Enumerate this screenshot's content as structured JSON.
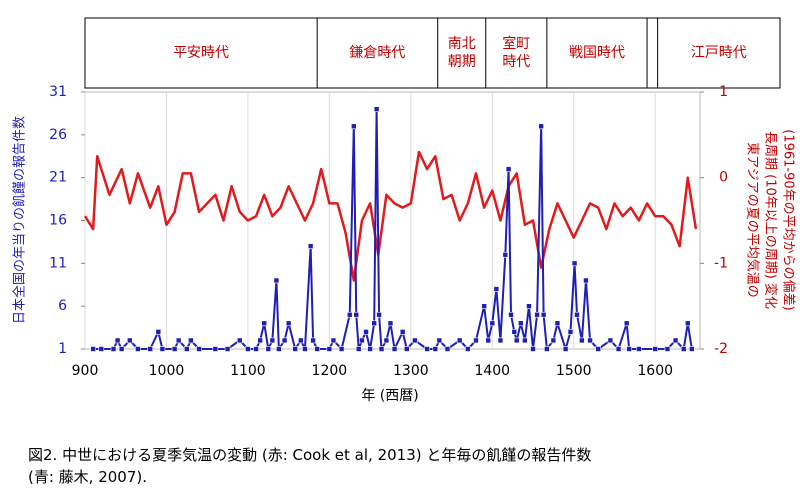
{
  "chart_data": {
    "type": "line",
    "eras": [
      [
        "平安時代"
      ],
      [
        "鎌倉時代"
      ],
      [
        "南北",
        "朝期"
      ],
      [
        "室町",
        "時代"
      ],
      [
        "戦国時代"
      ],
      null,
      [
        "江戸時代"
      ]
    ],
    "era_boundaries": [
      1185,
      1333,
      1392,
      1467,
      1590,
      1603
    ],
    "xlabel": "年 (西暦)",
    "ylabel": "日本全国の年当りの飢饉の報告件数",
    "y2label": [
      "東アジアの夏の平均気温の",
      "長周期 (10年以上の周期) 変化",
      "(1961-90年の平均からの偏差)"
    ],
    "caption": [
      "図2. 中世における夏季気温の変動 (赤: Cook et al, 2013) と年毎の飢饉の報告件数",
      "(青: 藤木, 2007)."
    ],
    "xlim": [
      900,
      1655
    ],
    "xticks": [
      900,
      1000,
      1100,
      1200,
      1300,
      1400,
      1500,
      1600
    ],
    "ylim": [
      1,
      31
    ],
    "yticks": [
      1,
      6,
      11,
      16,
      21,
      26,
      31
    ],
    "y2lim": [
      -2,
      1
    ],
    "y2ticks": [
      -2,
      -1,
      0,
      1
    ],
    "xgrid": true,
    "series": [
      {
        "color": "#e31a1c",
        "axis": "y2",
        "x": [
          900,
          910,
          915,
          930,
          945,
          955,
          965,
          980,
          990,
          1000,
          1010,
          1020,
          1030,
          1040,
          1050,
          1060,
          1070,
          1080,
          1090,
          1100,
          1110,
          1120,
          1130,
          1140,
          1150,
          1160,
          1170,
          1180,
          1190,
          1200,
          1210,
          1220,
          1230,
          1240,
          1250,
          1260,
          1270,
          1280,
          1290,
          1300,
          1310,
          1320,
          1330,
          1340,
          1350,
          1360,
          1370,
          1380,
          1390,
          1400,
          1410,
          1420,
          1430,
          1440,
          1450,
          1460,
          1470,
          1480,
          1490,
          1500,
          1510,
          1520,
          1530,
          1540,
          1550,
          1560,
          1570,
          1580,
          1590,
          1600,
          1610,
          1620,
          1630,
          1640,
          1650
        ],
        "values": [
          -0.45,
          -0.6,
          0.25,
          -0.2,
          0.1,
          -0.3,
          0.05,
          -0.35,
          -0.1,
          -0.55,
          -0.4,
          0.05,
          0.05,
          -0.4,
          -0.3,
          -0.2,
          -0.5,
          -0.1,
          -0.4,
          -0.5,
          -0.45,
          -0.2,
          -0.45,
          -0.35,
          -0.1,
          -0.3,
          -0.5,
          -0.3,
          0.1,
          -0.3,
          -0.3,
          -0.65,
          -1.2,
          -0.5,
          -0.3,
          -0.9,
          -0.2,
          -0.3,
          -0.35,
          -0.3,
          0.3,
          0.1,
          0.25,
          -0.25,
          -0.2,
          -0.5,
          -0.3,
          0.05,
          -0.35,
          -0.15,
          -0.5,
          -0.1,
          0.05,
          -0.55,
          -0.5,
          -1.05,
          -0.6,
          -0.3,
          -0.5,
          -0.7,
          -0.5,
          -0.3,
          -0.35,
          -0.6,
          -0.3,
          -0.45,
          -0.35,
          -0.5,
          -0.3,
          -0.45,
          -0.45,
          -0.55,
          -0.8,
          0.0,
          -0.6
        ]
      },
      {
        "color": "#1f1fb4",
        "axis": "y",
        "x": [
          910,
          920,
          935,
          940,
          945,
          955,
          965,
          980,
          990,
          995,
          1010,
          1015,
          1025,
          1030,
          1040,
          1060,
          1075,
          1090,
          1100,
          1110,
          1115,
          1120,
          1125,
          1130,
          1135,
          1138,
          1145,
          1150,
          1158,
          1165,
          1170,
          1177,
          1180,
          1185,
          1200,
          1205,
          1215,
          1225,
          1230,
          1233,
          1236,
          1240,
          1245,
          1250,
          1255,
          1258,
          1261,
          1264,
          1270,
          1275,
          1280,
          1290,
          1295,
          1305,
          1320,
          1330,
          1335,
          1345,
          1360,
          1370,
          1380,
          1390,
          1395,
          1400,
          1405,
          1410,
          1416,
          1420,
          1423,
          1427,
          1430,
          1435,
          1440,
          1445,
          1450,
          1455,
          1460,
          1463,
          1467,
          1475,
          1480,
          1490,
          1496,
          1501,
          1504,
          1510,
          1515,
          1520,
          1530,
          1545,
          1555,
          1565,
          1568,
          1580,
          1600,
          1615,
          1625,
          1635,
          1640,
          1645
        ],
        "values": [
          1,
          1,
          1,
          2,
          1,
          2,
          1,
          1,
          3,
          1,
          1,
          2,
          1,
          2,
          1,
          1,
          1,
          2,
          1,
          1,
          2,
          4,
          1,
          2,
          9,
          1,
          2,
          4,
          1,
          2,
          1,
          13,
          2,
          1,
          1,
          2,
          1,
          5,
          27,
          5,
          1,
          2,
          3,
          1,
          4,
          29,
          5,
          1,
          2,
          4,
          1,
          3,
          1,
          2,
          1,
          1,
          2,
          1,
          2,
          1,
          2,
          6,
          2,
          4,
          8,
          2,
          12,
          22,
          5,
          3,
          2,
          4,
          2,
          6,
          1,
          5,
          27,
          5,
          1,
          2,
          4,
          1,
          3,
          11,
          5,
          2,
          9,
          2,
          1,
          2,
          1,
          4,
          1,
          1,
          1,
          1,
          2,
          1,
          4,
          1
        ]
      }
    ]
  }
}
